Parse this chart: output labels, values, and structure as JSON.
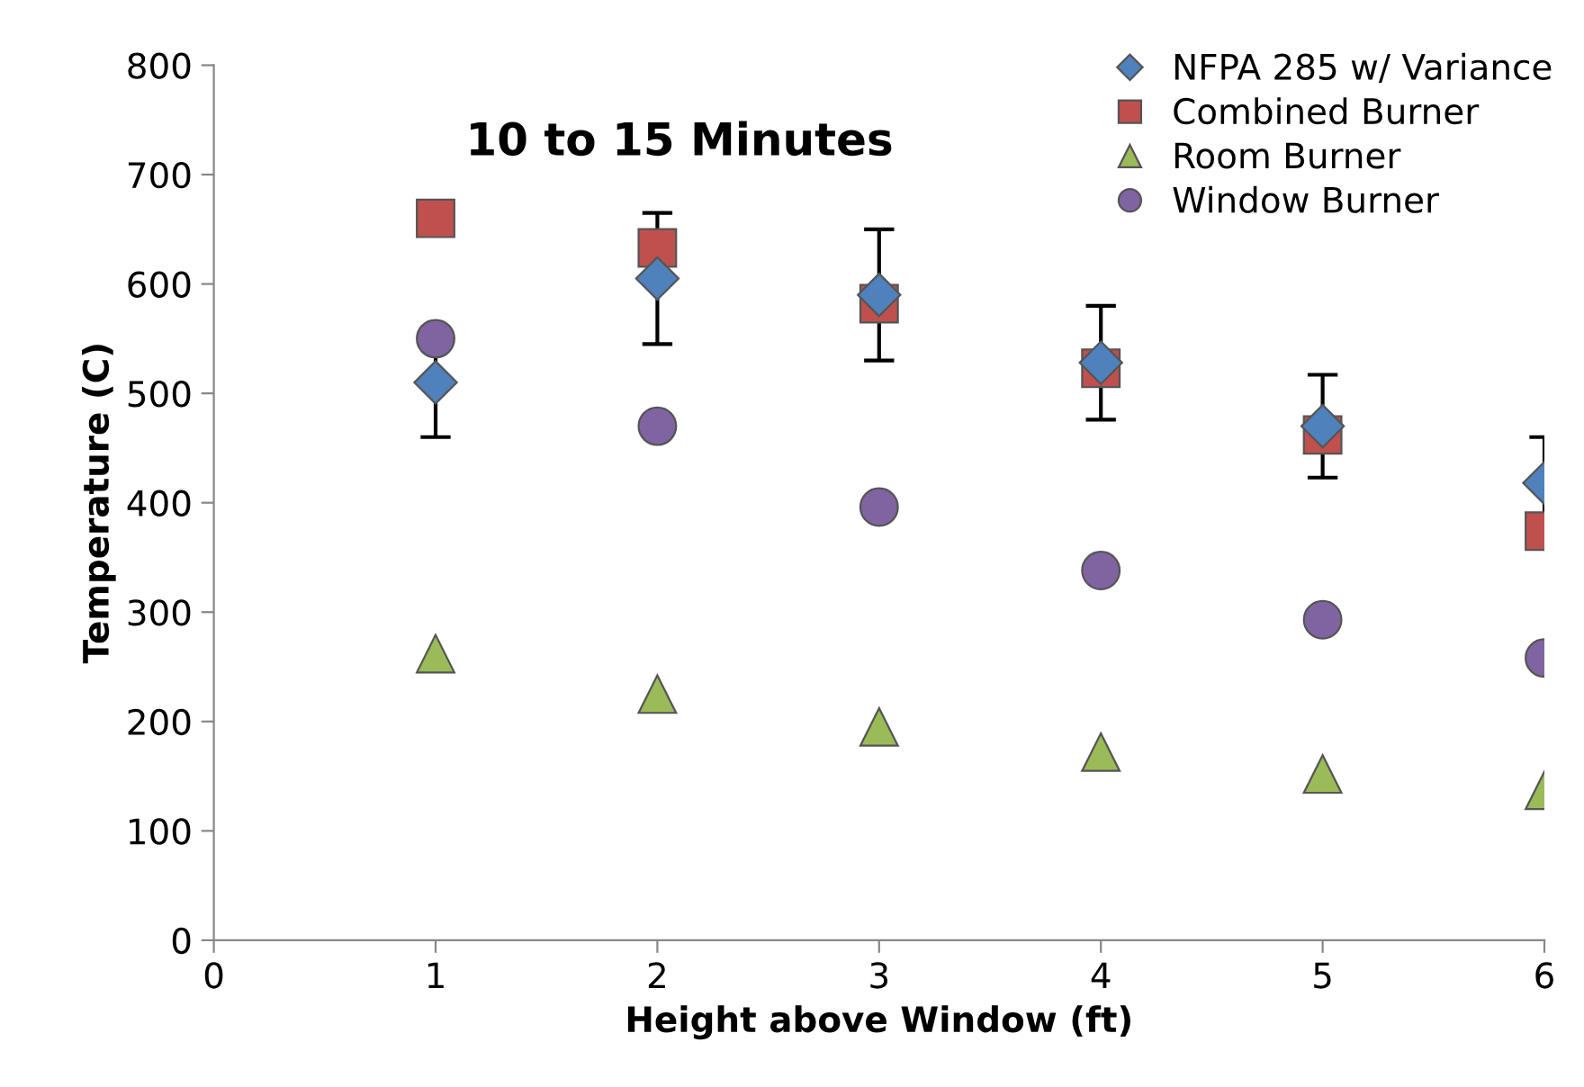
{
  "chart_data": {
    "type": "scatter",
    "title": "10 to 15 Minutes",
    "xlabel": "Height above Window (ft)",
    "ylabel": "Temperature (C)",
    "x": [
      1,
      2,
      3,
      4,
      5,
      6
    ],
    "xlim": [
      0,
      6
    ],
    "xticks": [
      0,
      1,
      2,
      3,
      4,
      5,
      6
    ],
    "ylim": [
      0,
      800
    ],
    "yticks": [
      0,
      100,
      200,
      300,
      400,
      500,
      600,
      700,
      800
    ],
    "grid": false,
    "legend": "top right",
    "series": [
      {
        "name": "NFPA 285 w/ Variance",
        "color": "#4f81bd",
        "marker": "diamond",
        "values": [
          510,
          605,
          590,
          528,
          470,
          418
        ],
        "errors": [
          50,
          60,
          60,
          52,
          47,
          42
        ]
      },
      {
        "name": "Combined Burner",
        "color": "#c0504d",
        "marker": "square",
        "values": [
          660,
          633,
          582,
          523,
          462,
          374
        ]
      },
      {
        "name": "Room Burner",
        "color": "#9bbb59",
        "marker": "triangle",
        "values": [
          262,
          225,
          195,
          172,
          152,
          137
        ]
      },
      {
        "name": "Window Burner",
        "color": "#8064a2",
        "marker": "circle",
        "values": [
          550,
          470,
          396,
          338,
          293,
          258
        ]
      }
    ]
  }
}
